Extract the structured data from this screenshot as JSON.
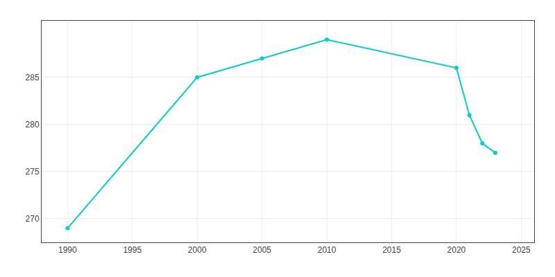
{
  "chart_data": {
    "type": "line",
    "x": [
      1990,
      2000,
      2005,
      2010,
      2020,
      2021,
      2022,
      2023
    ],
    "values": [
      269,
      285,
      287,
      289,
      286,
      281,
      278,
      277
    ],
    "color": "#00CED1",
    "marker": "circle",
    "xlim": [
      1988,
      2026
    ],
    "ylim": [
      267.5,
      291
    ],
    "xticks": [
      1990,
      1995,
      2000,
      2005,
      2010,
      2015,
      2020,
      2025
    ],
    "yticks": [
      270,
      275,
      280,
      285
    ],
    "grid": true
  }
}
